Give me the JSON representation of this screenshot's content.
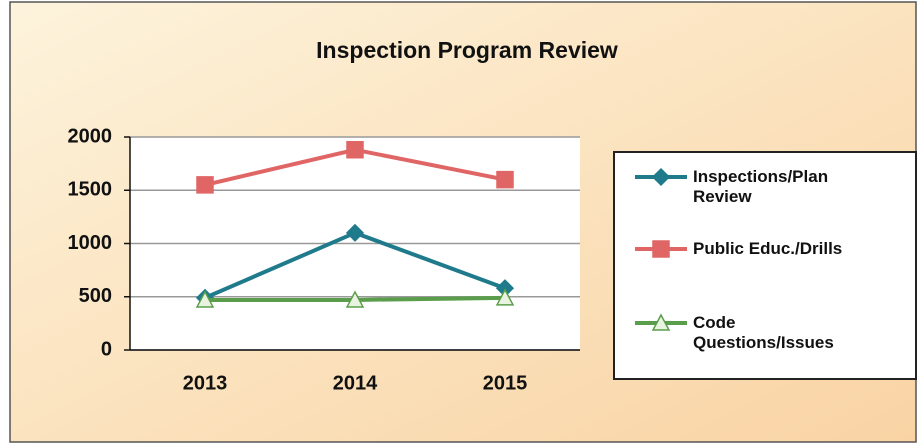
{
  "chart_data": {
    "type": "line",
    "title": "Inspection Program Review",
    "categories": [
      "2013",
      "2014",
      "2015"
    ],
    "series": [
      {
        "name": "Inspections/Plan Review",
        "color": "#1f7a8c",
        "marker": "diamond",
        "values": [
          490,
          1100,
          580
        ]
      },
      {
        "name": "Public Educ./Drills",
        "color": "#e06666",
        "marker": "square",
        "values": [
          1550,
          1880,
          1600
        ]
      },
      {
        "name": "Code Questions/Issues",
        "color": "#5a9e4b",
        "marker": "triangle",
        "values": [
          470,
          470,
          490
        ]
      }
    ],
    "ylim": [
      0,
      2000
    ],
    "yticks": [
      0,
      500,
      1000,
      1500,
      2000
    ],
    "grid": true,
    "legend": "right"
  }
}
